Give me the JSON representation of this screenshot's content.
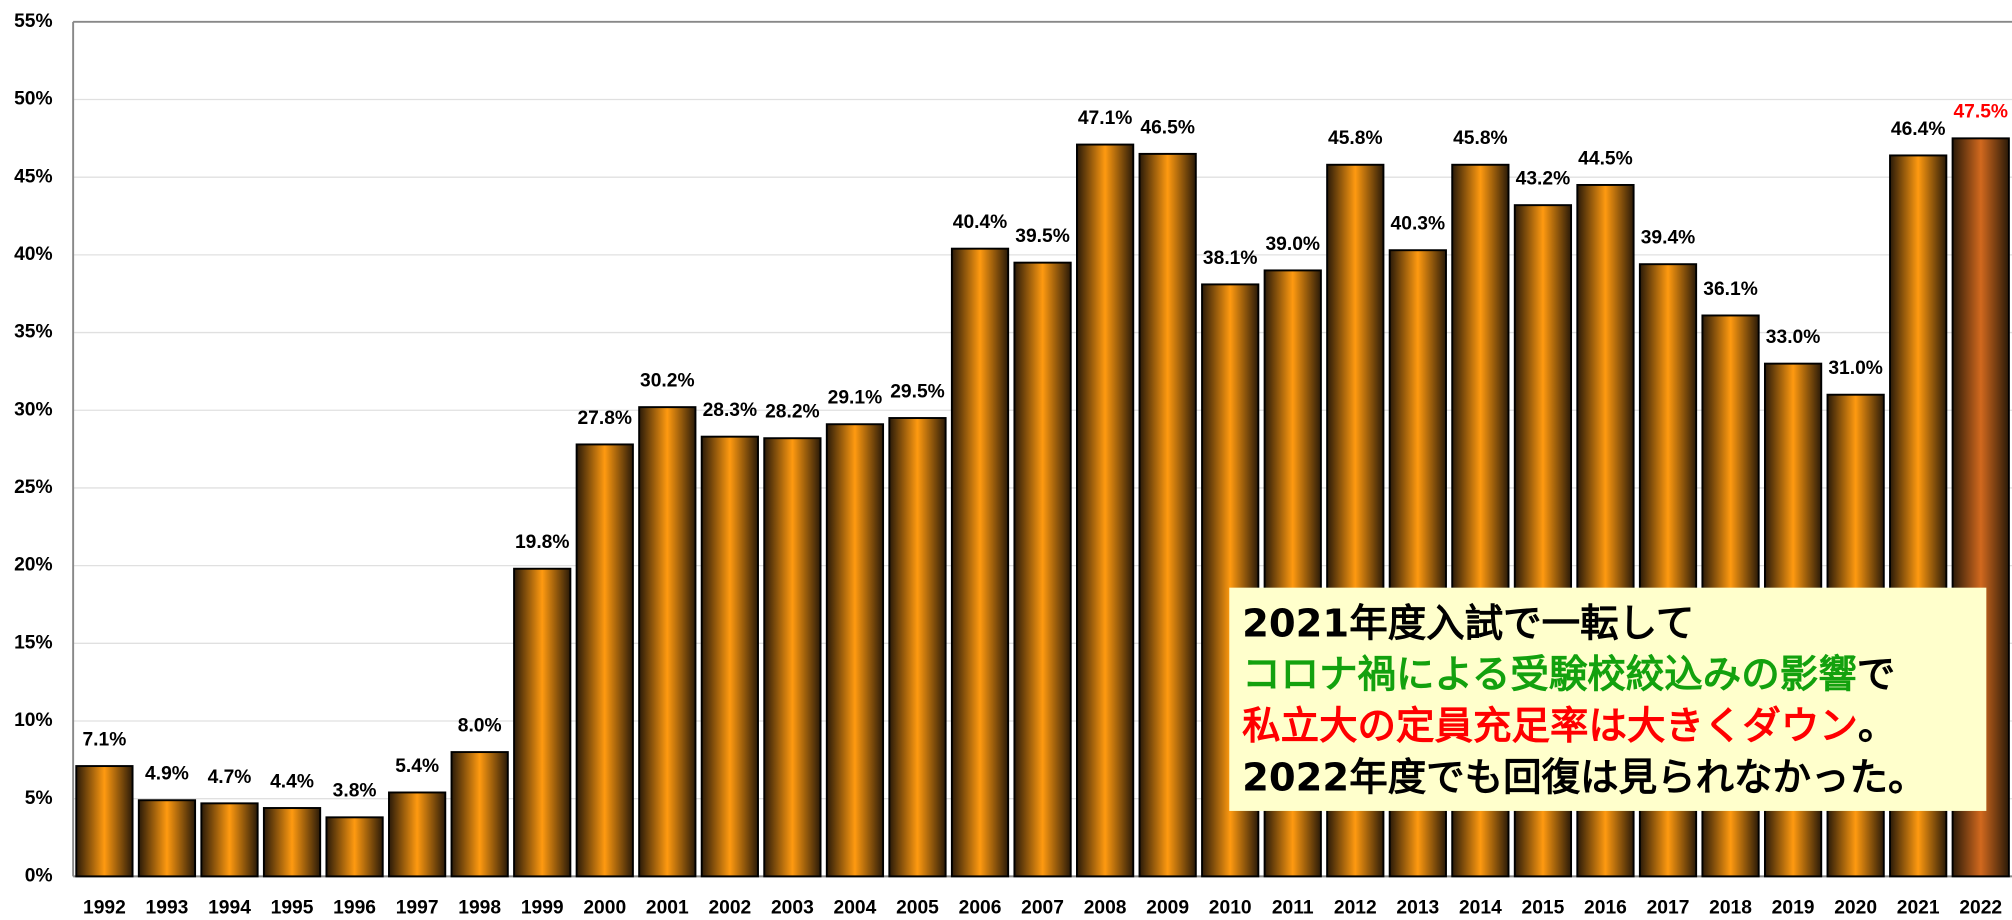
{
  "chart_data": {
    "type": "bar",
    "categories": [
      "1992",
      "1993",
      "1994",
      "1995",
      "1996",
      "1997",
      "1998",
      "1999",
      "2000",
      "2001",
      "2002",
      "2003",
      "2004",
      "2005",
      "2006",
      "2007",
      "2008",
      "2009",
      "2010",
      "2011",
      "2012",
      "2013",
      "2014",
      "2015",
      "2016",
      "2017",
      "2018",
      "2019",
      "2020",
      "2021",
      "2022"
    ],
    "values": [
      7.1,
      4.9,
      4.7,
      4.4,
      3.8,
      5.4,
      8.0,
      19.8,
      27.8,
      30.2,
      28.3,
      28.2,
      29.1,
      29.5,
      40.4,
      39.5,
      47.1,
      46.5,
      38.1,
      39.0,
      45.8,
      40.3,
      45.8,
      43.2,
      44.5,
      39.4,
      36.1,
      33.0,
      31.0,
      46.4,
      47.5
    ],
    "value_labels": [
      "7.1%",
      "4.9%",
      "4.7%",
      "4.4%",
      "3.8%",
      "5.4%",
      "8.0%",
      "19.8%",
      "27.8%",
      "30.2%",
      "28.3%",
      "28.2%",
      "29.1%",
      "29.5%",
      "40.4%",
      "39.5%",
      "47.1%",
      "46.5%",
      "38.1%",
      "39.0%",
      "45.8%",
      "40.3%",
      "45.8%",
      "43.2%",
      "44.5%",
      "39.4%",
      "36.1%",
      "33.0%",
      "31.0%",
      "46.4%",
      "47.5%"
    ],
    "colors": [
      "#ff9a10",
      "#ff9a10",
      "#ff9a10",
      "#ff9a10",
      "#ff9a10",
      "#ff9a10",
      "#ff9a10",
      "#ff9a10",
      "#ff9a10",
      "#ff9a10",
      "#ff9a10",
      "#ff9a10",
      "#ff9a10",
      "#ff9a10",
      "#ff9a10",
      "#ff9a10",
      "#ff9a10",
      "#ff9a10",
      "#ff9a10",
      "#ff9a10",
      "#ff9a10",
      "#ff9a10",
      "#ff9a10",
      "#ff9a10",
      "#ff9a10",
      "#ff9a10",
      "#ff9a10",
      "#ff9a10",
      "#ff9a10",
      "#ff9a10",
      "#d2691e"
    ],
    "label_colors": [
      "#000",
      "#000",
      "#000",
      "#000",
      "#000",
      "#000",
      "#000",
      "#000",
      "#000",
      "#000",
      "#000",
      "#000",
      "#000",
      "#000",
      "#000",
      "#000",
      "#000",
      "#000",
      "#000",
      "#000",
      "#000",
      "#000",
      "#000",
      "#000",
      "#000",
      "#000",
      "#000",
      "#000",
      "#000",
      "#000",
      "#ff0000"
    ],
    "ylim": [
      0,
      55
    ],
    "yticks": [
      {
        "value": 0,
        "label": "0%"
      },
      {
        "value": 5,
        "label": "5%"
      },
      {
        "value": 10,
        "label": "10%"
      },
      {
        "value": 15,
        "label": "15%"
      },
      {
        "value": 20,
        "label": "20%"
      },
      {
        "value": 25,
        "label": "25%"
      },
      {
        "value": 30,
        "label": "30%"
      },
      {
        "value": 35,
        "label": "35%"
      },
      {
        "value": 40,
        "label": "40%"
      },
      {
        "value": 45,
        "label": "45%"
      },
      {
        "value": 50,
        "label": "50%"
      },
      {
        "value": 55,
        "label": "55%"
      }
    ],
    "grid": true,
    "annotation": [
      {
        "text": "2021年度入試で一転して",
        "color": "#000000"
      },
      {
        "text": "コロナ禍による受験校絞込みの影響",
        "color": "#13a10e",
        "tail": {
          "text": "で",
          "color": "#000000"
        }
      },
      {
        "text": "私立大の定員充足率は大きくダウン",
        "color": "#ff0000",
        "tail": {
          "text": "。",
          "color": "#000000"
        }
      },
      {
        "text": "2022年度でも回復は見られなかった。",
        "color": "#000000"
      }
    ]
  }
}
